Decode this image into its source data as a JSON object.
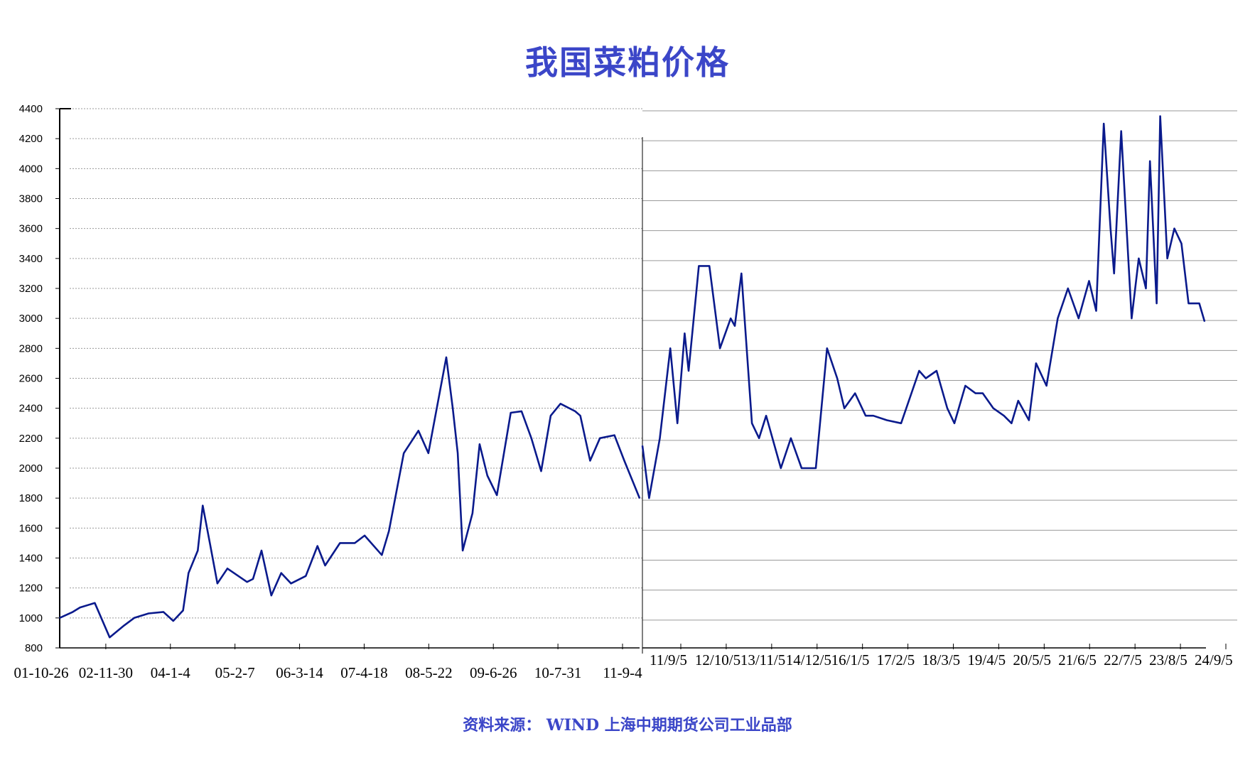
{
  "title": "我国菜粕价格",
  "source": "资料来源：   WIND   上海中期期货公司工业品部",
  "colors": {
    "title": "#3b46c8",
    "line": "#0a1a8c",
    "grid": "#9a9a9a"
  },
  "chart_data": [
    {
      "type": "line",
      "title": "我国菜粕价格",
      "xlabel": "",
      "ylabel": "",
      "ylim": [
        800,
        4400
      ],
      "y_ticks": [
        800,
        1000,
        1200,
        1400,
        1600,
        1800,
        2000,
        2200,
        2400,
        2600,
        2800,
        3000,
        3200,
        3400,
        3600,
        3800,
        4000,
        4200,
        4400
      ],
      "grid": true,
      "x_tick_labels": [
        "01-10-26",
        "02-11-30",
        "04-1-4",
        "05-2-7",
        "06-3-14",
        "07-4-18",
        "08-5-22",
        "09-6-26",
        "10-7-31",
        "11-9-4"
      ],
      "series": [
        {
          "x": [
            "2001-10-26",
            "2002-01-15",
            "2002-03-01",
            "2002-06-01",
            "2002-09-01",
            "2002-11-30",
            "2003-02-01",
            "2003-05-01",
            "2003-08-01",
            "2003-10-01",
            "2003-12-01",
            "2004-01-04",
            "2004-03-01",
            "2004-04-01",
            "2004-05-15",
            "2004-07-01",
            "2004-09-01",
            "2005-01-01",
            "2005-02-07",
            "2005-04-01",
            "2005-06-01",
            "2005-08-01",
            "2005-10-01",
            "2006-01-01",
            "2006-03-14",
            "2006-05-01",
            "2006-08-01",
            "2006-11-01",
            "2007-01-01",
            "2007-04-18",
            "2007-06-01",
            "2007-09-01",
            "2007-12-01",
            "2008-02-01",
            "2008-05-22",
            "2008-07-01",
            "2008-08-01",
            "2008-09-01",
            "2008-11-01",
            "2008-12-15",
            "2009-02-01",
            "2009-04-01",
            "2009-06-26",
            "2009-09-01",
            "2009-11-01",
            "2010-01-01",
            "2010-03-01",
            "2010-05-01",
            "2010-07-31",
            "2010-09-01",
            "2010-11-01",
            "2011-01-01",
            "2011-04-01",
            "2011-06-01",
            "2011-09-04"
          ],
          "y": [
            1000,
            1040,
            1070,
            1100,
            870,
            950,
            1000,
            1030,
            1040,
            980,
            1050,
            1300,
            1450,
            1750,
            1500,
            1230,
            1330,
            1240,
            1260,
            1450,
            1150,
            1300,
            1230,
            1280,
            1480,
            1350,
            1500,
            1500,
            1550,
            1420,
            1580,
            2100,
            2250,
            2100,
            2740,
            2400,
            2100,
            1450,
            1700,
            2160,
            1950,
            1820,
            2370,
            2380,
            2200,
            1980,
            2350,
            2430,
            2380,
            2350,
            2050,
            2200,
            2220,
            2050,
            1800
          ]
        }
      ]
    },
    {
      "type": "line",
      "title": "",
      "xlabel": "",
      "ylabel": "",
      "ylim": [
        800,
        4400
      ],
      "grid": true,
      "x_tick_labels": [
        "11/9/5",
        "12/10/5",
        "13/11/5",
        "14/12/5",
        "16/1/5",
        "17/2/5",
        "18/3/5",
        "19/4/5",
        "20/5/5",
        "21/6/5",
        "22/7/5",
        "23/8/5",
        "24/9/5"
      ],
      "series": [
        {
          "x": [
            "2011-09-05",
            "2011-11-01",
            "2012-02-01",
            "2012-05-01",
            "2012-07-01",
            "2012-09-01",
            "2012-10-05",
            "2013-01-01",
            "2013-04-01",
            "2013-07-01",
            "2013-10-01",
            "2013-11-05",
            "2014-01-01",
            "2014-04-01",
            "2014-06-01",
            "2014-08-01",
            "2014-12-05",
            "2015-03-01",
            "2015-06-01",
            "2015-09-01",
            "2015-10-01",
            "2016-01-05",
            "2016-04-01",
            "2016-06-01",
            "2016-09-01",
            "2016-12-01",
            "2017-02-05",
            "2017-06-01",
            "2017-10-01",
            "2018-03-05",
            "2018-05-01",
            "2018-08-01",
            "2018-11-01",
            "2019-01-01",
            "2019-04-05",
            "2019-07-01",
            "2019-09-01",
            "2019-12-01",
            "2020-03-01",
            "2020-05-05",
            "2020-07-01",
            "2020-10-01",
            "2020-12-01",
            "2021-03-01",
            "2021-06-05",
            "2021-09-01",
            "2021-12-01",
            "2022-03-01",
            "2022-05-01",
            "2022-07-05",
            "2022-09-01",
            "2022-10-01",
            "2022-12-01",
            "2023-03-01",
            "2023-05-01",
            "2023-07-01",
            "2023-08-05",
            "2023-10-01",
            "2023-11-01",
            "2024-01-01",
            "2024-03-01",
            "2024-05-01",
            "2024-07-01",
            "2024-09-05",
            "2024-10-01",
            "2024-11-15"
          ],
          "y": [
            2150,
            1800,
            2200,
            2800,
            2300,
            2900,
            2650,
            3350,
            3350,
            2800,
            3000,
            2950,
            3300,
            2300,
            2200,
            2350,
            2000,
            2200,
            2000,
            2000,
            2000,
            2800,
            2600,
            2400,
            2500,
            2350,
            2350,
            2320,
            2300,
            2650,
            2600,
            2650,
            2400,
            2300,
            2550,
            2500,
            2500,
            2400,
            2350,
            2300,
            2450,
            2320,
            2700,
            2550,
            3000,
            3200,
            3000,
            3250,
            3050,
            4300,
            3600,
            3300,
            4250,
            3000,
            3400,
            3200,
            4050,
            3100,
            4350,
            3400,
            3600,
            3500,
            3100,
            3100,
            3100,
            2980
          ]
        }
      ]
    }
  ]
}
